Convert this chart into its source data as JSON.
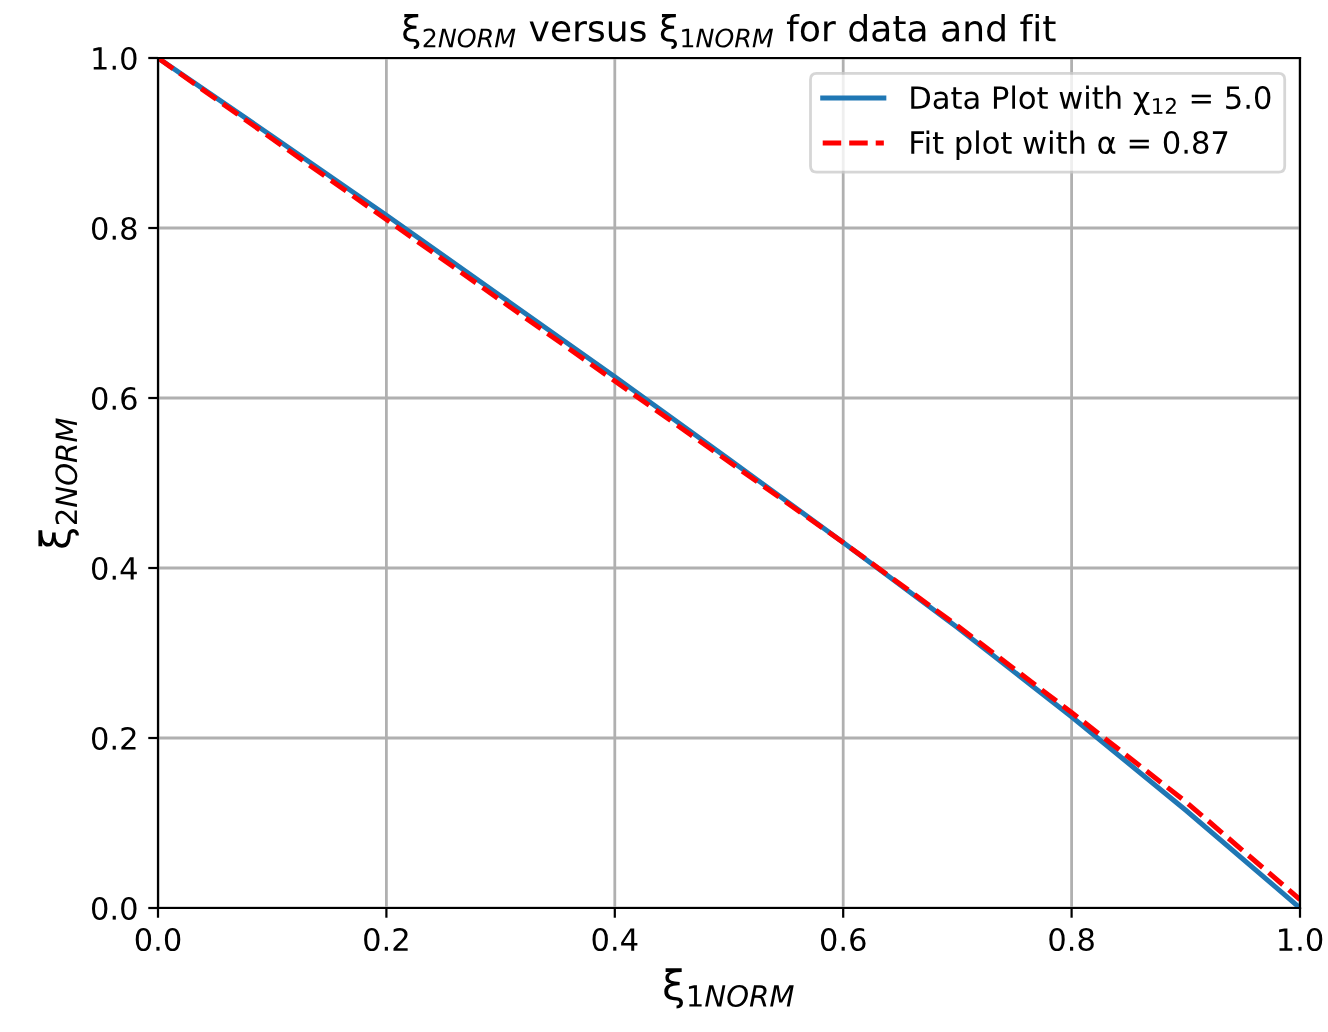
{
  "chart_data": {
    "type": "line",
    "title": "ξ$_{2NORM}$ versus ξ$_{1NORM}$ for data and fit",
    "xlabel": "ξ$_{1NORM}$",
    "ylabel": "ξ$_{2NORM}$",
    "x": [
      0,
      0.1,
      0.2,
      0.3,
      0.4,
      0.5,
      0.6,
      0.7,
      0.8,
      0.9,
      1.0
    ],
    "series": [
      {
        "name": "Data Plot with χ$_{12}$ = 5.0",
        "color": "#1f77b4",
        "line_style": "solid",
        "values": [
          1.0,
          0.908,
          0.815,
          0.72,
          0.625,
          0.528,
          0.43,
          0.33,
          0.225,
          0.115,
          0.0
        ]
      },
      {
        "name": "Fit plot with α = 0.87",
        "color": "#ff0000",
        "line_style": "dashed",
        "values": [
          1.0,
          0.905,
          0.81,
          0.715,
          0.62,
          0.525,
          0.43,
          0.332,
          0.23,
          0.125,
          0.01
        ]
      }
    ],
    "xlim": [
      0,
      1.0
    ],
    "ylim": [
      0,
      1.0
    ],
    "xticks": [
      {
        "value": 0,
        "label": "0.0"
      },
      0.2,
      0.4,
      0.6,
      0.8,
      {
        "value": 1,
        "label": "1.0"
      }
    ],
    "yticks": [
      {
        "value": 0,
        "label": "0.0"
      },
      0.2,
      0.4,
      0.6,
      0.8,
      {
        "value": 1,
        "label": "1.0"
      }
    ],
    "grid": true,
    "legend": "top right"
  }
}
